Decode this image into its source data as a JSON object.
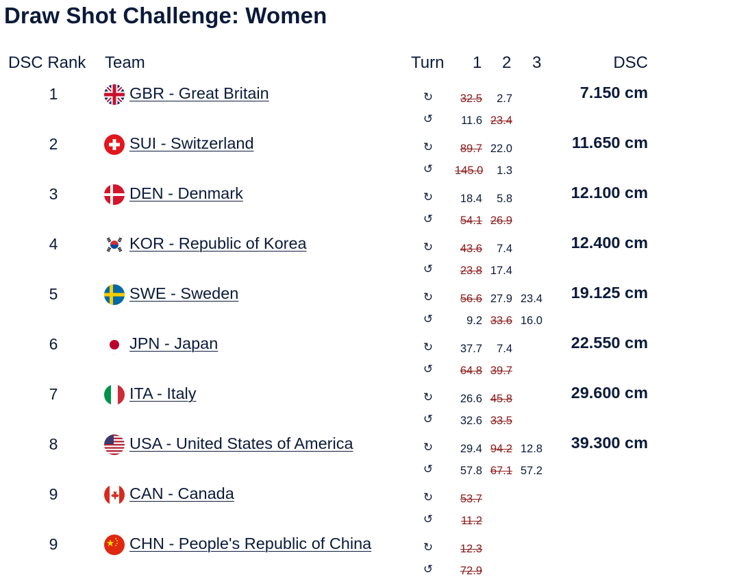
{
  "title": "Draw Shot Challenge: Women",
  "headers": {
    "rank": "DSC Rank",
    "team": "Team",
    "turn": "Turn",
    "end1": "1",
    "end2": "2",
    "end3": "3",
    "dsc": "DSC"
  },
  "turn_icons": {
    "clockwise": "↻",
    "counterclockwise": "↺"
  },
  "rows": [
    {
      "rank": "1",
      "team": "GBR - Great Britain",
      "flag": "gbr-flag-icon",
      "dsc": "7.150 cm",
      "shots": [
        [
          {
            "v": "32.5",
            "x": true
          },
          {
            "v": "2.7",
            "x": false
          },
          null
        ],
        [
          {
            "v": "11.6",
            "x": false
          },
          {
            "v": "23.4",
            "x": true
          },
          null
        ]
      ]
    },
    {
      "rank": "2",
      "team": "SUI - Switzerland",
      "flag": "sui-flag-icon",
      "dsc": "11.650 cm",
      "shots": [
        [
          {
            "v": "89.7",
            "x": true
          },
          {
            "v": "22.0",
            "x": false
          },
          null
        ],
        [
          {
            "v": "145.0",
            "x": true
          },
          {
            "v": "1.3",
            "x": false
          },
          null
        ]
      ]
    },
    {
      "rank": "3",
      "team": "DEN - Denmark",
      "flag": "den-flag-icon",
      "dsc": "12.100 cm",
      "shots": [
        [
          {
            "v": "18.4",
            "x": false
          },
          {
            "v": "5.8",
            "x": false
          },
          null
        ],
        [
          {
            "v": "54.1",
            "x": true
          },
          {
            "v": "26.9",
            "x": true
          },
          null
        ]
      ]
    },
    {
      "rank": "4",
      "team": "KOR - Republic of Korea",
      "flag": "kor-flag-icon",
      "dsc": "12.400 cm",
      "shots": [
        [
          {
            "v": "43.6",
            "x": true
          },
          {
            "v": "7.4",
            "x": false
          },
          null
        ],
        [
          {
            "v": "23.8",
            "x": true
          },
          {
            "v": "17.4",
            "x": false
          },
          null
        ]
      ]
    },
    {
      "rank": "5",
      "team": "SWE - Sweden",
      "flag": "swe-flag-icon",
      "dsc": "19.125 cm",
      "shots": [
        [
          {
            "v": "56.6",
            "x": true
          },
          {
            "v": "27.9",
            "x": false
          },
          {
            "v": "23.4",
            "x": false
          }
        ],
        [
          {
            "v": "9.2",
            "x": false
          },
          {
            "v": "33.6",
            "x": true
          },
          {
            "v": "16.0",
            "x": false
          }
        ]
      ]
    },
    {
      "rank": "6",
      "team": "JPN - Japan",
      "flag": "jpn-flag-icon",
      "dsc": "22.550 cm",
      "shots": [
        [
          {
            "v": "37.7",
            "x": false
          },
          {
            "v": "7.4",
            "x": false
          },
          null
        ],
        [
          {
            "v": "64.8",
            "x": true
          },
          {
            "v": "39.7",
            "x": true
          },
          null
        ]
      ]
    },
    {
      "rank": "7",
      "team": "ITA - Italy",
      "flag": "ita-flag-icon",
      "dsc": "29.600 cm",
      "shots": [
        [
          {
            "v": "26.6",
            "x": false
          },
          {
            "v": "45.8",
            "x": true
          },
          null
        ],
        [
          {
            "v": "32.6",
            "x": false
          },
          {
            "v": "33.5",
            "x": true
          },
          null
        ]
      ]
    },
    {
      "rank": "8",
      "team": "USA - United States of America",
      "flag": "usa-flag-icon",
      "dsc": "39.300 cm",
      "shots": [
        [
          {
            "v": "29.4",
            "x": false
          },
          {
            "v": "94.2",
            "x": true
          },
          {
            "v": "12.8",
            "x": false
          }
        ],
        [
          {
            "v": "57.8",
            "x": false
          },
          {
            "v": "67.1",
            "x": true
          },
          {
            "v": "57.2",
            "x": false
          }
        ]
      ]
    },
    {
      "rank": "9",
      "team": "CAN - Canada",
      "flag": "can-flag-icon",
      "dsc": "",
      "shots": [
        [
          {
            "v": "53.7",
            "x": true
          },
          null,
          null
        ],
        [
          {
            "v": "11.2",
            "x": true
          },
          null,
          null
        ]
      ]
    },
    {
      "rank": "9",
      "team": "CHN - People's Republic of China",
      "flag": "chn-flag-icon",
      "dsc": "",
      "shots": [
        [
          {
            "v": "12.3",
            "x": true
          },
          null,
          null
        ],
        [
          {
            "v": "72.9",
            "x": true
          },
          null,
          null
        ]
      ]
    }
  ]
}
